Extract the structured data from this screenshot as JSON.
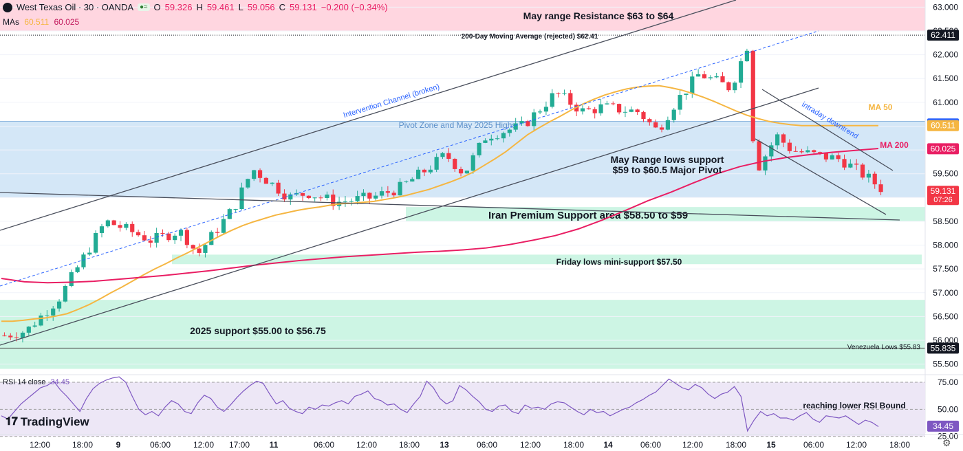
{
  "header": {
    "symbol": "West Texas Oil · 30 · OANDA",
    "o_label": "O",
    "o": "59.326",
    "h_label": "H",
    "h": "59.461",
    "l_label": "L",
    "l": "59.056",
    "c_label": "C",
    "c": "59.131",
    "change": "−0.200 (−0.34%)"
  },
  "mas": {
    "label": "MAs",
    "ma1": "60.511",
    "ma2": "60.025"
  },
  "rsi": {
    "label": "RSI 14 close",
    "value": "34.45"
  },
  "brand": "TradingView",
  "colors": {
    "up": "#22ab94",
    "down": "#f23645",
    "ma50": "#f5b642",
    "ma200": "#e91e63",
    "rsi": "#7e57c2",
    "zone_green": "#cdf5e4",
    "zone_blue": "#d4e7f7",
    "zone_red": "#ffd6e0"
  },
  "chart_data": [
    {
      "type": "candlestick",
      "title": "West Texas Oil · 30 · OANDA",
      "price_axis": [
        63.0,
        62.5,
        62.0,
        61.5,
        61.0,
        60.5,
        60.0,
        59.5,
        59.0,
        58.5,
        58.0,
        57.5,
        57.0,
        56.5,
        56.0,
        55.5
      ],
      "price_axis_labels": [
        "63.000",
        "62.500",
        "62.000",
        "61.500",
        "61.000",
        "60.500",
        "60.000",
        "59.500",
        "59.000",
        "58.500",
        "58.000",
        "57.500",
        "57.000",
        "56.500",
        "56.000",
        "55.500"
      ],
      "ylim": [
        55.35,
        63.15
      ],
      "time_labels": [
        "12:00",
        "18:00",
        "9",
        "06:00",
        "12:00",
        "17:00",
        "11",
        "06:00",
        "12:00",
        "18:00",
        "13",
        "06:00",
        "12:00",
        "18:00",
        "14",
        "06:00",
        "12:00",
        "18:00",
        "15",
        "06:00",
        "12:00",
        "18:00"
      ],
      "price_tags": [
        {
          "label": "62.411",
          "value": 62.411,
          "color": "#131722"
        },
        {
          "label": "60.546",
          "value": 60.546,
          "color": "#2962ff"
        },
        {
          "label": "60.511",
          "value": 60.511,
          "color": "#f5b642"
        },
        {
          "label": "60.025",
          "value": 60.025,
          "color": "#e91e63"
        },
        {
          "label": "59.131",
          "value": 59.131,
          "color": "#f23645",
          "sub": "07:26"
        },
        {
          "label": "55.835",
          "value": 55.835,
          "color": "#131722"
        }
      ],
      "zones": [
        {
          "label": "May range Resistance $63 to $64",
          "from": 62.5,
          "to": 63.15,
          "color": "#ffd6e0"
        },
        {
          "label": "Pivot Zone and May 2025 Highs",
          "from": 59.0,
          "to": 60.6,
          "color": "#d4e7f7"
        },
        {
          "label": "Iran Premium Support area $58.50 to $59",
          "from": 58.5,
          "to": 58.8,
          "color": "#cdf5e4"
        },
        {
          "label": "Friday lows mini-support $57.50",
          "from": 57.6,
          "to": 57.8,
          "color": "#cdf5e4"
        },
        {
          "label": "2025 support $55.00 to $56.75",
          "from": 55.4,
          "to": 56.85,
          "color": "#cdf5e4"
        }
      ],
      "annotations": [
        {
          "text": "200-Day Moving Average (rejected) $62.41"
        },
        {
          "text": "Intervention Channel (broken)"
        },
        {
          "text": "May Range lows support"
        },
        {
          "text": "$59 to $60.5 Major Pivot"
        },
        {
          "text": "intraday downtrend"
        },
        {
          "text": "MA 50"
        },
        {
          "text": "MA 200"
        },
        {
          "text": "Venezuela Lows $55.83"
        }
      ],
      "series": [
        {
          "name": "MA 50",
          "x": [
            0,
            5,
            10,
            15,
            20,
            25,
            30,
            35,
            40,
            45,
            50,
            55,
            60,
            65,
            70,
            75,
            80,
            85,
            90,
            95,
            100,
            105,
            110,
            115,
            120,
            125,
            130,
            135,
            140,
            145,
            150,
            155,
            160,
            165,
            170,
            175,
            180,
            185,
            190,
            195,
            200,
            205,
            210,
            215,
            220,
            225,
            230,
            235,
            240,
            245,
            250,
            255,
            260,
            265,
            270,
            275,
            280,
            285,
            290,
            295,
            300,
            305,
            310,
            315,
            320,
            325,
            330,
            335,
            340,
            345,
            350,
            355,
            360,
            365,
            370,
            375,
            380,
            385,
            390,
            395,
            400
          ],
          "y": [
            56.4,
            56.4,
            56.42,
            56.45,
            56.47,
            56.51,
            56.56,
            56.65,
            56.75,
            56.87,
            57.0,
            57.12,
            57.25,
            57.38,
            57.5,
            57.61,
            57.73,
            57.84,
            57.96,
            58.08,
            58.2,
            58.31,
            58.41,
            58.49,
            58.56,
            58.63,
            58.68,
            58.73,
            58.77,
            58.8,
            58.84,
            58.87,
            58.88,
            58.9,
            58.92,
            58.96,
            59.0,
            59.05,
            59.11,
            59.17,
            59.25,
            59.33,
            59.42,
            59.53,
            59.67,
            59.81,
            59.96,
            60.14,
            60.32,
            60.46,
            60.59,
            60.71,
            60.84,
            60.96,
            61.06,
            61.15,
            61.22,
            61.28,
            61.32,
            61.34,
            61.35,
            61.31,
            61.26,
            61.19,
            61.11,
            61.02,
            60.92,
            60.82,
            60.73,
            60.66,
            60.6,
            60.56,
            60.53,
            60.51,
            60.51,
            60.51,
            60.51,
            60.51,
            60.51,
            60.51,
            60.51
          ]
        },
        {
          "name": "MA 200",
          "x": [
            0,
            10,
            20,
            30,
            40,
            50,
            60,
            70,
            80,
            90,
            100,
            110,
            120,
            130,
            140,
            150,
            160,
            170,
            180,
            190,
            200,
            210,
            220,
            230,
            240,
            250,
            260,
            270,
            280,
            290,
            300,
            310,
            320,
            330,
            340,
            350,
            360,
            370,
            380
          ],
          "y": [
            57.3,
            57.23,
            57.21,
            57.22,
            57.24,
            57.28,
            57.32,
            57.36,
            57.41,
            57.46,
            57.52,
            57.58,
            57.63,
            57.68,
            57.72,
            57.76,
            57.79,
            57.82,
            57.85,
            57.87,
            57.9,
            57.94,
            58.01,
            58.1,
            58.2,
            58.34,
            58.52,
            58.72,
            58.93,
            59.11,
            59.31,
            59.5,
            59.65,
            59.76,
            59.84,
            59.9,
            59.95,
            59.99,
            60.03
          ]
        }
      ]
    },
    {
      "type": "line",
      "title": "RSI 14 close",
      "ylim": [
        28,
        82
      ],
      "levels": [
        {
          "label": "75.00",
          "value": 75
        },
        {
          "label": "50.00",
          "value": 50
        },
        {
          "label": "25.00",
          "value": 25
        }
      ],
      "current": {
        "label": "34.45",
        "value": 34.45
      },
      "annotation": "reaching lower RSI Bound",
      "series": [
        {
          "name": "RSI",
          "y": [
            44,
            41,
            48,
            55,
            60,
            65,
            70,
            72,
            76,
            68,
            62,
            55,
            48,
            60,
            69,
            74,
            77,
            79,
            80,
            75,
            62,
            50,
            45,
            48,
            44,
            52,
            58,
            55,
            48,
            46,
            56,
            63,
            60,
            52,
            48,
            54,
            61,
            67,
            72,
            76,
            74,
            64,
            55,
            58,
            51,
            48,
            46,
            52,
            50,
            54,
            53,
            56,
            58,
            55,
            62,
            64,
            67,
            60,
            58,
            54,
            55,
            50,
            47,
            55,
            62,
            76,
            70,
            60,
            55,
            58,
            72,
            68,
            62,
            57,
            50,
            48,
            53,
            54,
            48,
            46,
            54,
            51,
            52,
            50,
            55,
            57,
            56,
            52,
            48,
            45,
            50,
            47,
            48,
            44,
            47,
            50,
            52,
            56,
            59,
            63,
            66,
            72,
            78,
            74,
            70,
            68,
            73,
            70,
            64,
            60,
            64,
            66,
            71,
            62,
            30,
            40,
            48,
            44,
            46,
            42,
            42,
            40,
            44,
            47,
            41,
            38,
            44,
            43,
            42,
            44,
            40,
            36,
            40,
            38,
            34
          ]
        }
      ]
    }
  ]
}
